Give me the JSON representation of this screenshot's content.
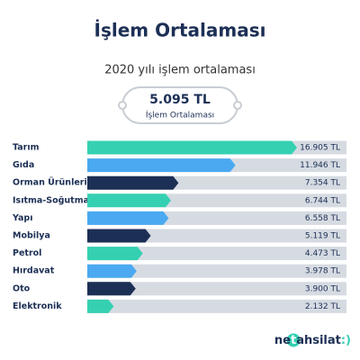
{
  "header": {
    "title": "İşlem Ortalaması"
  },
  "summary": {
    "subtitle": "2020 yılı işlem ortalaması",
    "value": "5.095 TL",
    "label": "İşlem Ortalaması"
  },
  "chart_data": {
    "type": "bar",
    "orientation": "horizontal",
    "categories": [
      "Tarım",
      "Gıda",
      "Orman Ürünleri",
      "Isıtma-Soğutma",
      "Yapı",
      "Mobilya",
      "Petrol",
      "Hırdavat",
      "Oto",
      "Elektronik"
    ],
    "values": [
      16905,
      11946,
      7354,
      6744,
      6558,
      5119,
      4473,
      3978,
      3900,
      2132
    ],
    "value_labels": [
      "16.905 TL",
      "11.946 TL",
      "7.354 TL",
      "6.744 TL",
      "6.558 TL",
      "5.119 TL",
      "4.473 TL",
      "3.978 TL",
      "3.900 TL",
      "2.132 TL"
    ],
    "colors": [
      "#35d0b2",
      "#4aa9f0",
      "#1c2f55",
      "#35d0b2",
      "#4aa9f0",
      "#1c2f55",
      "#35d0b2",
      "#4aa9f0",
      "#1c2f55",
      "#35d0b2"
    ]
  },
  "logo": {
    "parts": [
      "ne",
      "t",
      "ahsilat",
      ":)"
    ]
  }
}
